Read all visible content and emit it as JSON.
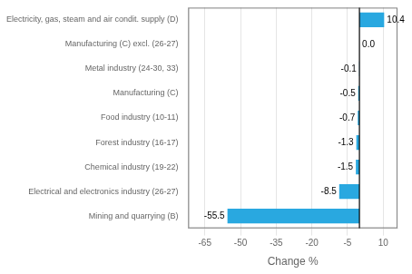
{
  "chart_data": {
    "type": "bar",
    "orientation": "horizontal",
    "categories": [
      "Mining and quarrying (B)",
      "Electrical and electronics industry (26-27)",
      "Chemical industry (19-22)",
      "Forest industry (16-17)",
      "Food industry (10-11)",
      "Manufacturing (C)",
      "Metal industry (24-30, 33)",
      "Manufacturing (C) excl. (26-27)",
      "Electricity, gas, steam and air condit. supply (D)"
    ],
    "values": [
      -55.5,
      -8.5,
      -1.5,
      -1.3,
      -0.7,
      -0.5,
      -0.1,
      0.0,
      10.4
    ],
    "value_labels": [
      "-55.5",
      "-8.5",
      "-1.5",
      "-1.3",
      "-0.7",
      "-0.5",
      "-0.1",
      "0.0",
      "10.4"
    ],
    "data_labels": true,
    "color": "#29a8e0",
    "xlim": [
      -72,
      16
    ],
    "xticks": [
      -65,
      -50,
      -35,
      -20,
      -5,
      10
    ],
    "xlabel": "Change %",
    "grid": true
  }
}
